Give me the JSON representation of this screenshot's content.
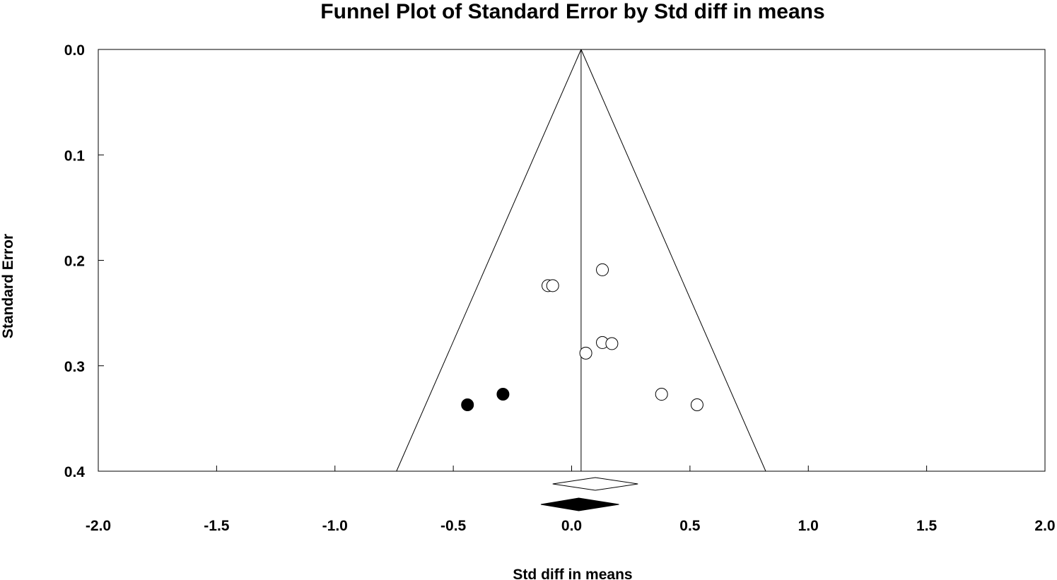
{
  "chart_data": {
    "type": "scatter",
    "title": "Funnel Plot of Standard Error by Std diff in means",
    "xlabel": "Std diff in means",
    "ylabel": "Standard Error",
    "xlim": [
      -2.0,
      2.0
    ],
    "ylim": [
      0.0,
      0.4
    ],
    "y_inverted": true,
    "x_ticks": [
      "-2.0",
      "-1.5",
      "-1.0",
      "-0.5",
      "0.0",
      "0.5",
      "1.0",
      "1.5",
      "2.0"
    ],
    "y_ticks": [
      "0.0",
      "0.1",
      "0.2",
      "0.3",
      "0.4"
    ],
    "grid": false,
    "pooled_effect": 0.04,
    "funnel_bottom_se": 0.4,
    "funnel_bottom_x": [
      -0.74,
      0.82
    ],
    "series": [
      {
        "style": "open",
        "points": [
          {
            "x": 0.13,
            "y": 0.209
          },
          {
            "x": -0.1,
            "y": 0.224
          },
          {
            "x": -0.08,
            "y": 0.224
          },
          {
            "x": 0.13,
            "y": 0.278
          },
          {
            "x": 0.17,
            "y": 0.279
          },
          {
            "x": 0.06,
            "y": 0.288
          },
          {
            "x": 0.38,
            "y": 0.327
          },
          {
            "x": 0.53,
            "y": 0.337
          }
        ]
      },
      {
        "style": "filled",
        "points": [
          {
            "x": -0.29,
            "y": 0.327
          },
          {
            "x": -0.44,
            "y": 0.337
          }
        ]
      }
    ],
    "summary_diamonds": [
      {
        "style": "open",
        "center": 0.1,
        "lower": -0.08,
        "upper": 0.28
      },
      {
        "style": "filled",
        "center": 0.03,
        "lower": -0.13,
        "upper": 0.2
      }
    ]
  }
}
